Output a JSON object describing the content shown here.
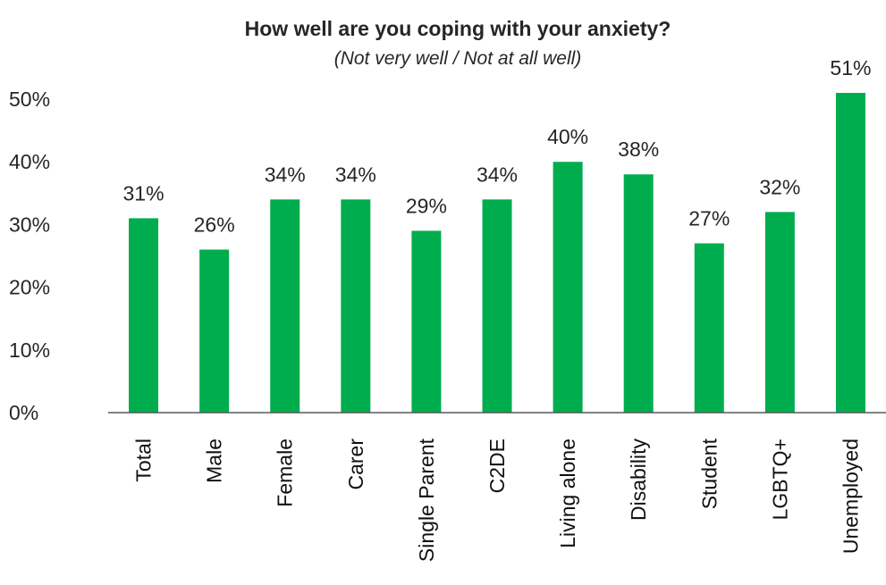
{
  "chart_data": {
    "type": "bar",
    "title": "How well are you coping with your anxiety?",
    "subtitle": "(Not very well / Not at all well)",
    "categories": [
      "Total",
      "Male",
      "Female",
      "Carer",
      "Single Parent",
      "C2DE",
      "Living alone",
      "Disability",
      "Student",
      "LGBTQ+",
      "Unemployed"
    ],
    "values": [
      31,
      26,
      34,
      34,
      29,
      34,
      40,
      38,
      27,
      32,
      51
    ],
    "value_labels": [
      "31%",
      "26%",
      "34%",
      "34%",
      "29%",
      "34%",
      "40%",
      "38%",
      "27%",
      "32%",
      "51%"
    ],
    "y_ticks": [
      "0%",
      "10%",
      "20%",
      "30%",
      "40%",
      "50%"
    ],
    "ylim": [
      0,
      50
    ],
    "xlabel": "",
    "ylabel": "",
    "grid": false,
    "legend": "none",
    "bar_color": "#00AD4E",
    "axis_color": "#595959"
  }
}
